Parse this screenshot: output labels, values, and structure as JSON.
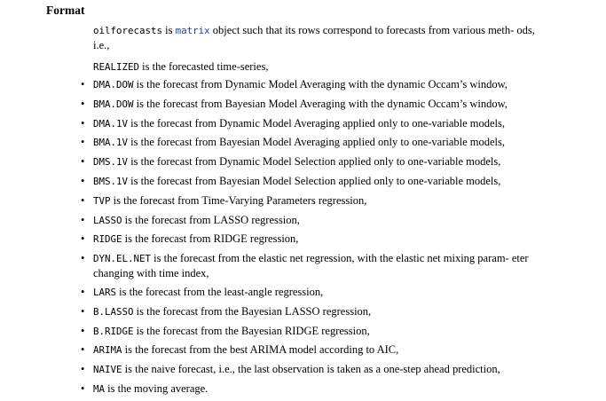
{
  "format": {
    "title": "Format",
    "intro_code": "oilforecasts",
    "intro_is": " is ",
    "intro_link": "matrix",
    "intro_rest": " object such that its rows correspond to forecasts from various meth- ods, i.e.,",
    "realized_code": "REALIZED",
    "realized_desc": " is the forecasted time-series,"
  },
  "items": [
    {
      "code": "DMA.DOW",
      "desc": " is the forecast from Dynamic Model Averaging with the dynamic Occam’s window,"
    },
    {
      "code": "BMA.DOW",
      "desc": " is the forecast from Bayesian Model Averaging with the dynamic Occam’s window,"
    },
    {
      "code": "DMA.1V",
      "desc": " is the forecast from Dynamic Model Averaging applied only to one-variable models,"
    },
    {
      "code": "BMA.1V",
      "desc": " is the forecast from Bayesian Model Averaging applied only to one-variable models,"
    },
    {
      "code": "DMS.1V",
      "desc": " is the forecast from Dynamic Model Selection applied only to one-variable models,"
    },
    {
      "code": "BMS.1V",
      "desc": " is the forecast from Bayesian Model Selection applied only to one-variable models,"
    },
    {
      "code": "TVP",
      "desc": " is the forecast from Time-Varying Parameters regression,"
    },
    {
      "code": "LASSO",
      "desc": " is the forecast from LASSO regression,"
    },
    {
      "code": "RIDGE",
      "desc": " is the forecast from RIDGE regression,"
    },
    {
      "code": "DYN.EL.NET",
      "desc": " is the forecast from the elastic net regression, with the elastic net mixing param- eter changing with time index,"
    },
    {
      "code": "LARS",
      "desc": " is the forecast from the least-angle regression,"
    },
    {
      "code": "B.LASSO",
      "desc": " is the forecast from the Bayesian LASSO regression,"
    },
    {
      "code": "B.RIDGE",
      "desc": " is the forecast from the Bayesian RIDGE regression,"
    },
    {
      "code": "ARIMA",
      "desc": " is the forecast from the best ARIMA model according to AIC,"
    },
    {
      "code": "NAIVE",
      "desc": " is the naive forecast, i.e., the last observation is taken as a one-step ahead prediction,"
    },
    {
      "code": "MA",
      "desc": " is the moving average."
    }
  ],
  "bullet_char": "•",
  "colors": {
    "link": "#1f3ea8",
    "text": "#000000",
    "background": "#ffffff"
  }
}
